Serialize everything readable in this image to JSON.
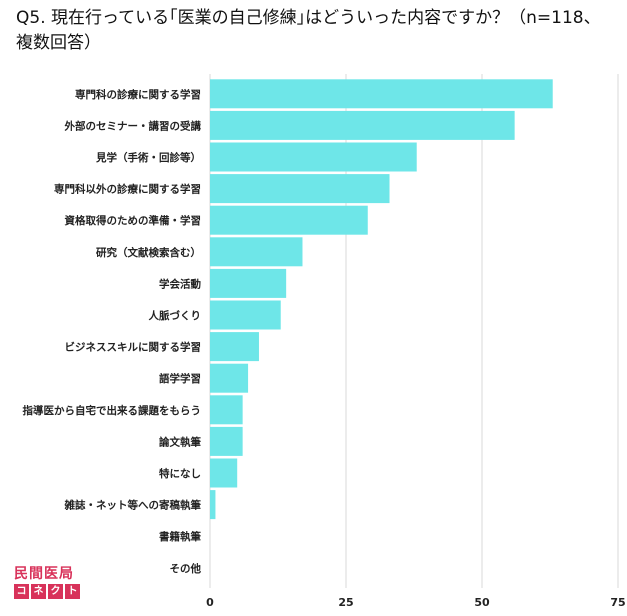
{
  "chart_data": {
    "type": "bar",
    "orientation": "horizontal",
    "title": "Q5. 現在行っている｢医業の自己修練｣はどういった内容ですか？（n=118、複数回答）",
    "categories": [
      "専門科の診療に関する学習",
      "外部のセミナー・講習の受講",
      "見学（手術・回診等）",
      "専門科以外の診療に関する学習",
      "資格取得のための準備・学習",
      "研究（文献検索含む）",
      "学会活動",
      "人脈づくり",
      "ビジネススキルに関する学習",
      "語学学習",
      "指導医から自宅で出来る課題をもらう",
      "論文執筆",
      "特になし",
      "雑誌・ネット等への寄稿執筆",
      "書籍執筆",
      "その他"
    ],
    "values": [
      63,
      56,
      38,
      33,
      29,
      17,
      14,
      13,
      9,
      7,
      6,
      6,
      5,
      1,
      0,
      0
    ],
    "xlim": [
      0,
      75
    ],
    "xticks": [
      "0",
      "25",
      "50",
      "75"
    ],
    "grid": true,
    "bar_color": "#6ee6e8",
    "xlabel": "",
    "ylabel": ""
  },
  "logo": {
    "top": "民間医局",
    "bottom": [
      "コ",
      "ネ",
      "ク",
      "ト"
    ],
    "color": "#d8325a"
  }
}
